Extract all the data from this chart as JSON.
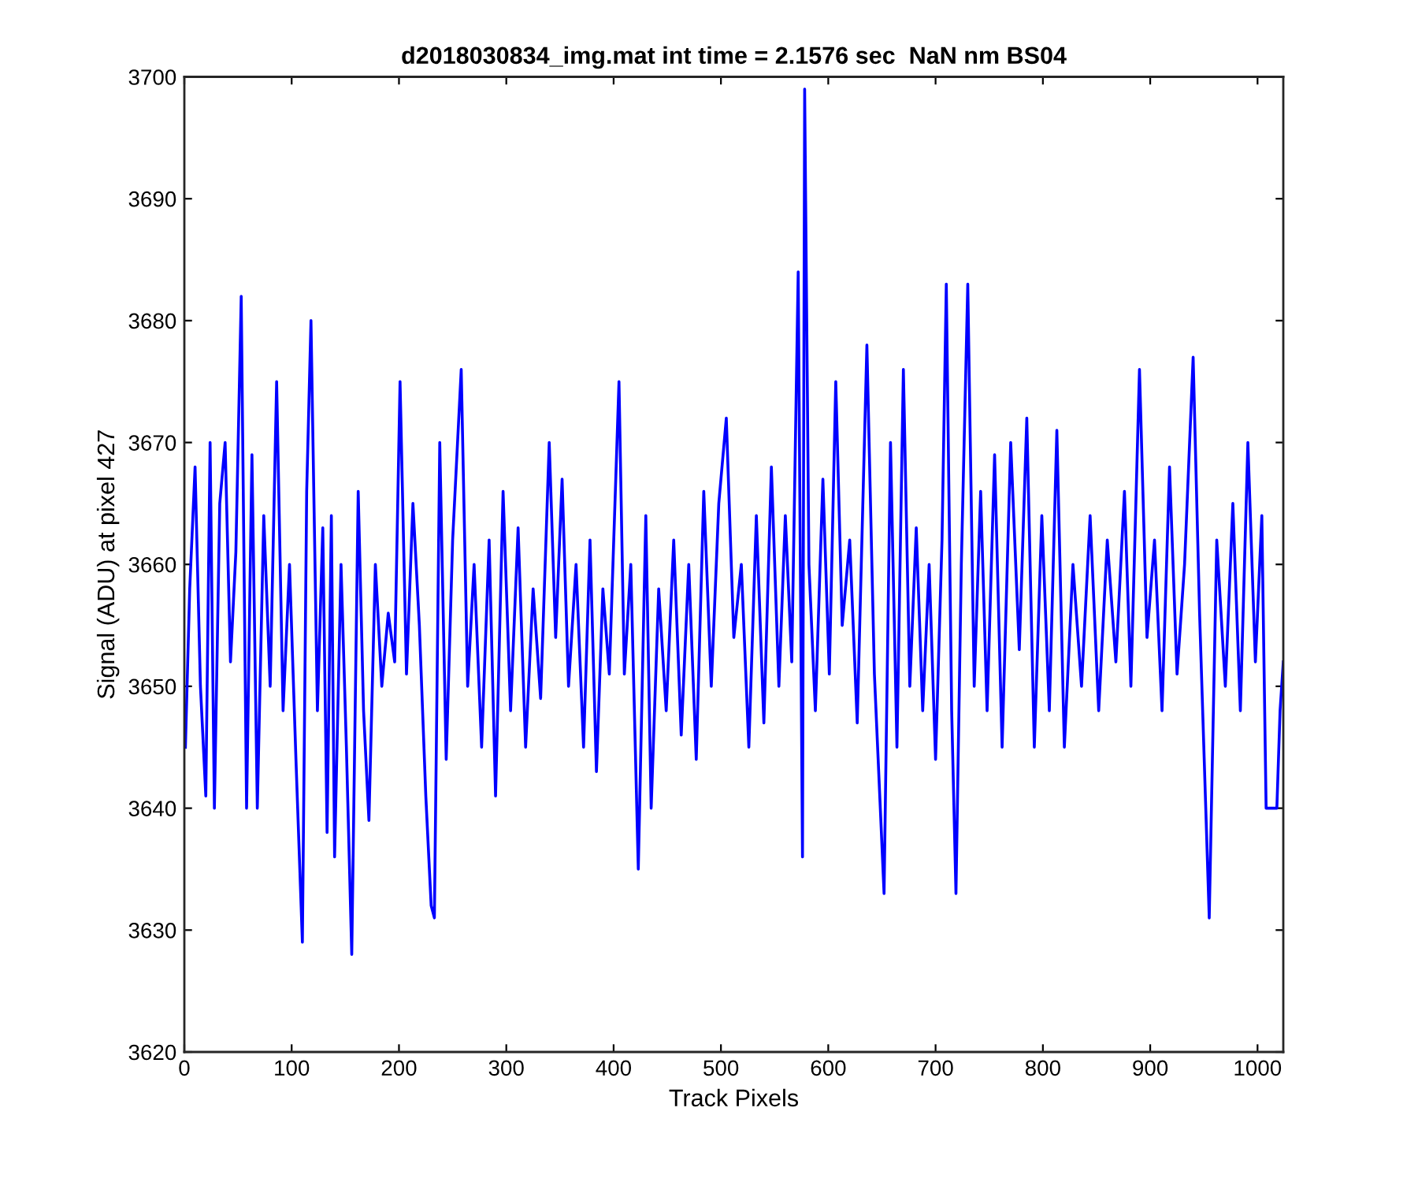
{
  "chart_data": {
    "type": "line",
    "title": "d2018030834_img.mat int time = 2.1576 sec  NaN nm BS04",
    "xlabel": "Track Pixels",
    "ylabel": "Signal (ADU) at pixel 427",
    "series": [
      {
        "color": "#0000ff",
        "x": [
          1,
          5,
          10,
          15,
          20,
          24,
          28,
          33,
          38,
          43,
          48,
          53,
          58,
          63,
          68,
          74,
          80,
          86,
          92,
          98,
          104,
          110,
          114,
          118,
          124,
          129,
          133,
          137,
          140,
          146,
          151,
          156,
          162,
          167,
          172,
          178,
          184,
          190,
          196,
          201,
          207,
          213,
          219,
          225,
          230,
          233,
          238,
          244,
          250,
          258,
          264,
          270,
          277,
          284,
          290,
          297,
          304,
          311,
          318,
          325,
          332,
          340,
          346,
          352,
          358,
          365,
          372,
          378,
          384,
          390,
          396,
          405,
          410,
          416,
          423,
          430,
          435,
          442,
          449,
          456,
          463,
          470,
          477,
          484,
          491,
          498,
          505,
          512,
          519,
          526,
          533,
          540,
          547,
          554,
          560,
          566,
          572,
          576,
          578,
          582,
          588,
          595,
          601,
          607,
          613,
          620,
          627,
          636,
          643,
          652,
          658,
          664,
          670,
          676,
          682,
          688,
          694,
          700,
          706,
          710,
          715,
          719,
          724,
          730,
          736,
          742,
          748,
          755,
          762,
          770,
          778,
          785,
          792,
          799,
          806,
          813,
          820,
          828,
          836,
          844,
          852,
          860,
          868,
          876,
          882,
          890,
          897,
          904,
          911,
          918,
          925,
          932,
          940,
          946,
          955,
          962,
          970,
          977,
          984,
          991,
          998,
          1004,
          1008,
          1012,
          1018,
          1021,
          1024
        ],
        "values": [
          3645,
          3658,
          3668,
          3650,
          3641,
          3670,
          3640,
          3665,
          3670,
          3652,
          3661,
          3682,
          3640,
          3669,
          3640,
          3664,
          3650,
          3675,
          3648,
          3660,
          3644,
          3629,
          3666,
          3680,
          3648,
          3663,
          3638,
          3664,
          3636,
          3660,
          3645,
          3628,
          3666,
          3648,
          3639,
          3660,
          3650,
          3656,
          3652,
          3675,
          3651,
          3665,
          3655,
          3641,
          3632,
          3631,
          3670,
          3644,
          3662,
          3676,
          3650,
          3660,
          3645,
          3662,
          3641,
          3666,
          3648,
          3663,
          3645,
          3658,
          3649,
          3670,
          3654,
          3667,
          3650,
          3660,
          3645,
          3662,
          3643,
          3658,
          3651,
          3675,
          3651,
          3660,
          3635,
          3664,
          3640,
          3658,
          3648,
          3662,
          3646,
          3660,
          3644,
          3666,
          3650,
          3665,
          3672,
          3654,
          3660,
          3645,
          3664,
          3647,
          3668,
          3650,
          3664,
          3652,
          3684,
          3636,
          3699,
          3660,
          3648,
          3667,
          3651,
          3675,
          3655,
          3662,
          3647,
          3678,
          3651,
          3633,
          3670,
          3645,
          3676,
          3650,
          3663,
          3648,
          3660,
          3644,
          3662,
          3683,
          3648,
          3633,
          3660,
          3683,
          3650,
          3666,
          3648,
          3669,
          3645,
          3670,
          3653,
          3672,
          3645,
          3664,
          3648,
          3671,
          3645,
          3660,
          3650,
          3664,
          3648,
          3662,
          3652,
          3666,
          3650,
          3676,
          3654,
          3662,
          3648,
          3668,
          3651,
          3660,
          3677,
          3656,
          3631,
          3662,
          3650,
          3665,
          3648,
          3670,
          3652,
          3664,
          3640,
          3640,
          3640,
          3648,
          3652
        ]
      }
    ],
    "xlim": [
      0,
      1024
    ],
    "ylim": [
      3620,
      3700
    ],
    "xticks": [
      0,
      100,
      200,
      300,
      400,
      500,
      600,
      700,
      800,
      900,
      1000
    ],
    "yticks": [
      3620,
      3630,
      3640,
      3650,
      3660,
      3670,
      3680,
      3690,
      3700
    ],
    "grid": false,
    "marker": "none",
    "line_style": "solid"
  }
}
